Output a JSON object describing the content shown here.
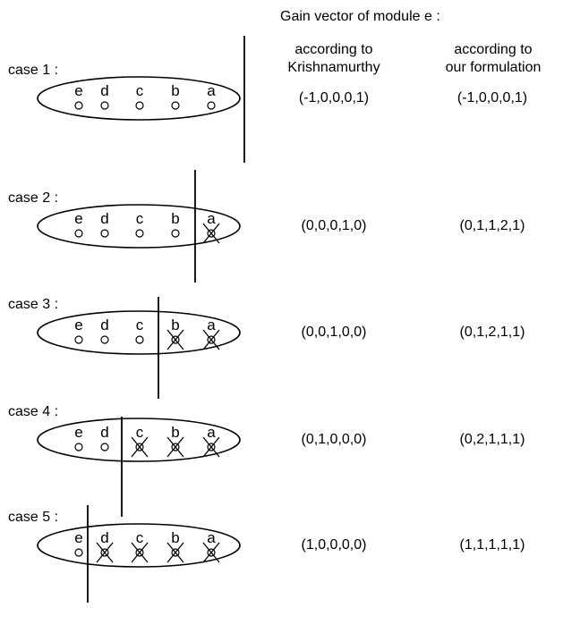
{
  "header": {
    "title": "Gain vector of module e :",
    "col1": [
      "according to",
      "Krishnamurthy"
    ],
    "col2": [
      "according to",
      "our formulation"
    ]
  },
  "cases": [
    {
      "label": "case 1 :",
      "cut": 5,
      "gain_krishnamurthy": "(-1,0,0,0,1)",
      "gain_ours": "(-1,0,0,0,1)"
    },
    {
      "label": "case 2 :",
      "cut": 4,
      "gain_krishnamurthy": "(0,0,0,1,0)",
      "gain_ours": "(0,1,1,2,1)"
    },
    {
      "label": "case 3 :",
      "cut": 3,
      "gain_krishnamurthy": "(0,0,1,0,0)",
      "gain_ours": "(0,1,2,1,1)"
    },
    {
      "label": "case 4 :",
      "cut": 2,
      "gain_krishnamurthy": "(0,1,0,0,0)",
      "gain_ours": "(0,2,1,1,1)"
    },
    {
      "label": "case 5 :",
      "cut": 1,
      "gain_krishnamurthy": "(1,0,0,0,0)",
      "gain_ours": "(1,1,1,1,1)"
    }
  ],
  "modules": [
    "e",
    "d",
    "c",
    "b",
    "a"
  ]
}
